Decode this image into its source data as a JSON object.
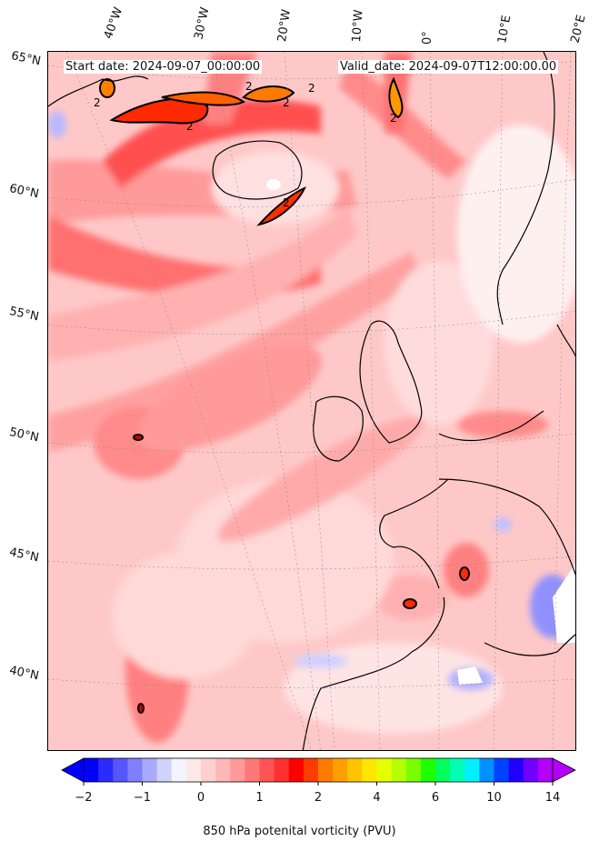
{
  "header": {
    "start_date": "Start date: 2024-09-07_00:00:00",
    "valid_date": "Valid_date: 2024-09-07T12:00:00.00"
  },
  "axes": {
    "longitude_labels": [
      "40°W",
      "30°W",
      "20°W",
      "10°W",
      "0°",
      "10°E",
      "20°E"
    ],
    "latitude_labels": [
      "65°N",
      "60°N",
      "55°N",
      "50°N",
      "45°N",
      "40°N"
    ]
  },
  "contour_labels": [
    "2",
    "2",
    "2",
    "2",
    "2",
    "2",
    "2"
  ],
  "colorbar": {
    "title": "850 hPa potenital vorticity (PVU)",
    "tick_labels": [
      "−2",
      "−1",
      "0",
      "1",
      "2",
      "4",
      "6",
      "10",
      "14"
    ],
    "colors": [
      "#0000ff",
      "#2b2bff",
      "#5656ff",
      "#7f7fff",
      "#a9a9ff",
      "#d2d2ff",
      "#f4f4ff",
      "#ffe8e8",
      "#ffd0d0",
      "#ffb8b8",
      "#ff9a9a",
      "#ff7878",
      "#ff5454",
      "#ff3030",
      "#ff0000",
      "#ff3c00",
      "#ff7a00",
      "#ff9f00",
      "#ffc400",
      "#ffe600",
      "#e6ff00",
      "#b4ff00",
      "#78ff00",
      "#1eff00",
      "#00ff5a",
      "#00ffb4",
      "#00f0ff",
      "#0090ff",
      "#0040ff",
      "#2000ff",
      "#7000ff",
      "#b300ff"
    ],
    "extend_low": "#0000ff",
    "extend_high": "#b300ff"
  }
}
